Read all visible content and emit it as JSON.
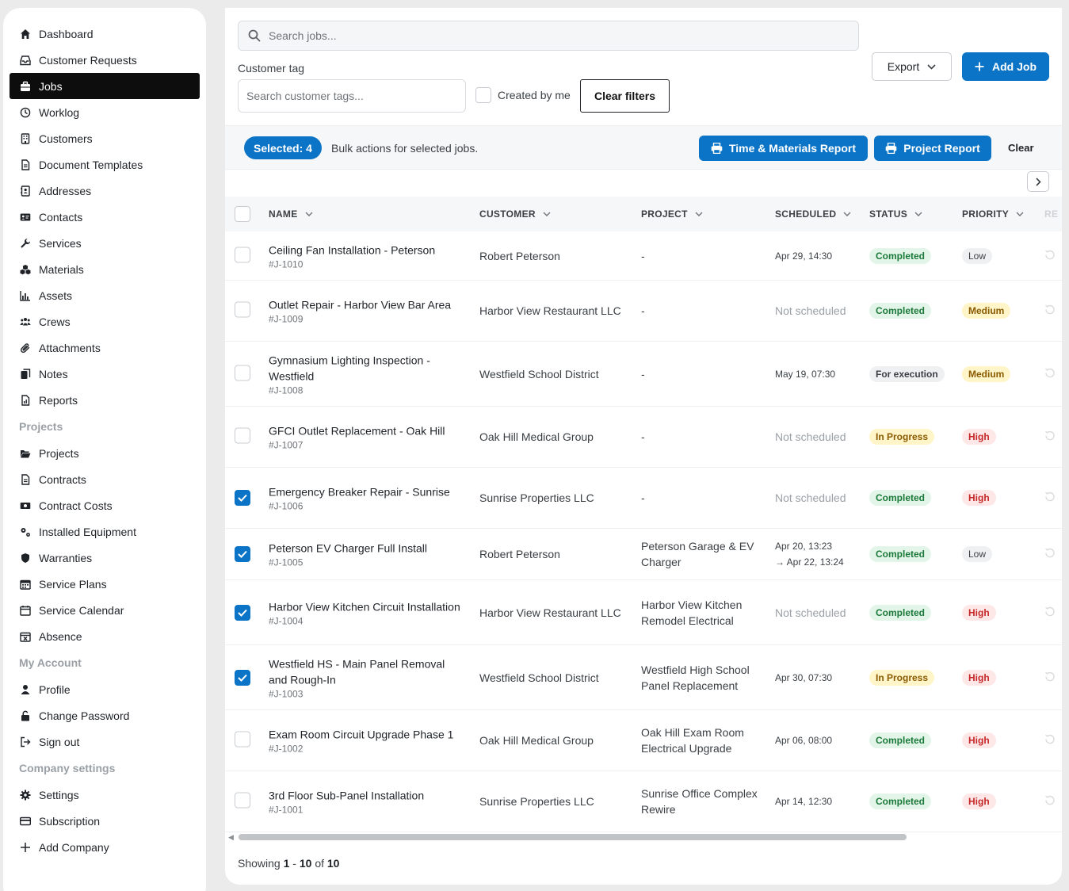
{
  "sidebar": {
    "items": [
      {
        "label": "Dashboard",
        "icon": "home-icon",
        "name": "sidebar-item-dashboard"
      },
      {
        "label": "Customer Requests",
        "icon": "inbox-icon",
        "name": "sidebar-item-customer-requests"
      },
      {
        "label": "Jobs",
        "icon": "briefcase-icon",
        "name": "sidebar-item-jobs",
        "active": true
      },
      {
        "label": "Worklog",
        "icon": "clock-icon",
        "name": "sidebar-item-worklog"
      },
      {
        "label": "Customers",
        "icon": "building-icon",
        "name": "sidebar-item-customers"
      },
      {
        "label": "Document Templates",
        "icon": "document-icon",
        "name": "sidebar-item-document-templates"
      },
      {
        "label": "Addresses",
        "icon": "address-book-icon",
        "name": "sidebar-item-addresses"
      },
      {
        "label": "Contacts",
        "icon": "id-card-icon",
        "name": "sidebar-item-contacts"
      },
      {
        "label": "Services",
        "icon": "wrench-icon",
        "name": "sidebar-item-services"
      },
      {
        "label": "Materials",
        "icon": "cubes-icon",
        "name": "sidebar-item-materials"
      },
      {
        "label": "Assets",
        "icon": "bar-chart-icon",
        "name": "sidebar-item-assets"
      },
      {
        "label": "Crews",
        "icon": "users-icon",
        "name": "sidebar-item-crews"
      },
      {
        "label": "Attachments",
        "icon": "paperclip-icon",
        "name": "sidebar-item-attachments"
      },
      {
        "label": "Notes",
        "icon": "notes-icon",
        "name": "sidebar-item-notes"
      },
      {
        "label": "Reports",
        "icon": "report-icon",
        "name": "sidebar-item-reports"
      }
    ],
    "sections": [
      {
        "title": "Projects",
        "items": [
          {
            "label": "Projects",
            "icon": "folder-open-icon",
            "name": "sidebar-item-projects"
          },
          {
            "label": "Contracts",
            "icon": "document-icon",
            "name": "sidebar-item-contracts"
          },
          {
            "label": "Contract Costs",
            "icon": "money-icon",
            "name": "sidebar-item-contract-costs"
          },
          {
            "label": "Installed Equipment",
            "icon": "cogs-icon",
            "name": "sidebar-item-installed-equipment"
          },
          {
            "label": "Warranties",
            "icon": "shield-icon",
            "name": "sidebar-item-warranties"
          },
          {
            "label": "Service Plans",
            "icon": "calendar-grid-icon",
            "name": "sidebar-item-service-plans"
          },
          {
            "label": "Service Calendar",
            "icon": "calendar-icon",
            "name": "sidebar-item-service-calendar"
          },
          {
            "label": "Absence",
            "icon": "calendar-x-icon",
            "name": "sidebar-item-absence"
          }
        ]
      },
      {
        "title": "My Account",
        "items": [
          {
            "label": "Profile",
            "icon": "user-icon",
            "name": "sidebar-item-profile"
          },
          {
            "label": "Change Password",
            "icon": "unlock-icon",
            "name": "sidebar-item-change-password"
          },
          {
            "label": "Sign out",
            "icon": "sign-out-icon",
            "name": "sidebar-item-sign-out"
          }
        ]
      },
      {
        "title": "Company settings",
        "items": [
          {
            "label": "Settings",
            "icon": "gear-icon",
            "name": "sidebar-item-settings"
          },
          {
            "label": "Subscription",
            "icon": "credit-card-icon",
            "name": "sidebar-item-subscription"
          },
          {
            "label": "Add Company",
            "icon": "plus-icon",
            "name": "sidebar-item-add-company"
          }
        ]
      }
    ]
  },
  "filters": {
    "search_placeholder": "Search jobs...",
    "customer_tag_label": "Customer tag",
    "customer_tag_placeholder": "Search customer tags...",
    "created_by_me_label": "Created by me",
    "created_by_me_checked": false,
    "clear_filters_label": "Clear filters"
  },
  "toolbar": {
    "export_label": "Export",
    "add_job_label": "Add Job"
  },
  "bulk": {
    "selected_label": "Selected: 4",
    "text": "Bulk actions for selected jobs.",
    "tm_report_label": "Time & Materials Report",
    "project_report_label": "Project Report",
    "clear_label": "Clear"
  },
  "table": {
    "columns": {
      "name": "NAME",
      "customer": "CUSTOMER",
      "project": "PROJECT",
      "scheduled": "SCHEDULED",
      "status": "STATUS",
      "priority": "PRIORITY",
      "extra": "RE"
    },
    "rows": [
      {
        "checked": false,
        "name": "Ceiling Fan Installation - Peterson",
        "id": "#J-1010",
        "customer": "Robert Peterson",
        "project": "-",
        "scheduled": "Apr 29, 14:30",
        "scheduled_end": "",
        "scheduled_none": false,
        "status": "Completed",
        "status_kind": "completed",
        "priority": "Low",
        "priority_kind": "low",
        "height": 62
      },
      {
        "checked": false,
        "name": "Outlet Repair - Harbor View Bar Area",
        "id": "#J-1009",
        "customer": "Harbor View Restaurant LLC",
        "project": "-",
        "scheduled": "Not scheduled",
        "scheduled_end": "",
        "scheduled_none": true,
        "status": "Completed",
        "status_kind": "completed",
        "priority": "Medium",
        "priority_kind": "medium",
        "height": 77
      },
      {
        "checked": false,
        "name": "Gymnasium Lighting Inspection - Westfield",
        "id": "#J-1008",
        "customer": "Westfield School District",
        "project": "-",
        "scheduled": "May 19, 07:30",
        "scheduled_end": "",
        "scheduled_none": false,
        "status": "For execution",
        "status_kind": "exec",
        "priority": "Medium",
        "priority_kind": "medium",
        "height": 82
      },
      {
        "checked": false,
        "name": "GFCI Outlet Replacement - Oak Hill",
        "id": "#J-1007",
        "customer": "Oak Hill Medical Group",
        "project": "-",
        "scheduled": "Not scheduled",
        "scheduled_end": "",
        "scheduled_none": true,
        "status": "In Progress",
        "status_kind": "progress",
        "priority": "High",
        "priority_kind": "high",
        "height": 77
      },
      {
        "checked": true,
        "name": "Emergency Breaker Repair - Sunrise",
        "id": "#J-1006",
        "customer": "Sunrise Properties LLC",
        "project": "-",
        "scheduled": "Not scheduled",
        "scheduled_end": "",
        "scheduled_none": true,
        "status": "Completed",
        "status_kind": "completed",
        "priority": "High",
        "priority_kind": "high",
        "height": 77
      },
      {
        "checked": true,
        "name": "Peterson EV Charger Full Install",
        "id": "#J-1005",
        "customer": "Robert Peterson",
        "project": "Peterson Garage & EV Charger",
        "scheduled": "Apr 20, 13:23",
        "scheduled_end": "→ Apr 22, 13:24",
        "scheduled_none": false,
        "status": "Completed",
        "status_kind": "completed",
        "priority": "Low",
        "priority_kind": "low",
        "height": 65
      },
      {
        "checked": true,
        "name": "Harbor View Kitchen Circuit Installation",
        "id": "#J-1004",
        "customer": "Harbor View Restaurant LLC",
        "project": "Harbor View Kitchen Remodel Electrical",
        "scheduled": "Not scheduled",
        "scheduled_end": "",
        "scheduled_none": true,
        "status": "Completed",
        "status_kind": "completed",
        "priority": "High",
        "priority_kind": "high",
        "height": 82
      },
      {
        "checked": true,
        "name": "Westfield HS - Main Panel Removal and Rough-In",
        "id": "#J-1003",
        "customer": "Westfield School District",
        "project": "Westfield High School Panel Replacement",
        "scheduled": "Apr 30, 07:30",
        "scheduled_end": "",
        "scheduled_none": false,
        "status": "In Progress",
        "status_kind": "progress",
        "priority": "High",
        "priority_kind": "high",
        "height": 82
      },
      {
        "checked": false,
        "name": "Exam Room Circuit Upgrade Phase 1",
        "id": "#J-1002",
        "customer": "Oak Hill Medical Group",
        "project": "Oak Hill Exam Room Electrical Upgrade",
        "scheduled": "Apr 06, 08:00",
        "scheduled_end": "",
        "scheduled_none": false,
        "status": "Completed",
        "status_kind": "completed",
        "priority": "High",
        "priority_kind": "high",
        "height": 77
      },
      {
        "checked": false,
        "name": "3rd Floor Sub-Panel Installation",
        "id": "#J-1001",
        "customer": "Sunrise Properties LLC",
        "project": "Sunrise Office Complex Rewire",
        "scheduled": "Apr 14, 12:30",
        "scheduled_end": "",
        "scheduled_none": false,
        "status": "Completed",
        "status_kind": "completed",
        "priority": "High",
        "priority_kind": "high",
        "height": 77
      }
    ]
  },
  "pagination": {
    "showing_prefix": "Showing",
    "from": "1",
    "separator": "-",
    "to": "10",
    "of_word": "of",
    "total": "10"
  },
  "colors": {
    "accent": "#0b74c7",
    "active_nav": "#0d0d0d",
    "completed": "#1b7a3a",
    "in_progress": "#8a5a00",
    "high": "#c62828"
  }
}
